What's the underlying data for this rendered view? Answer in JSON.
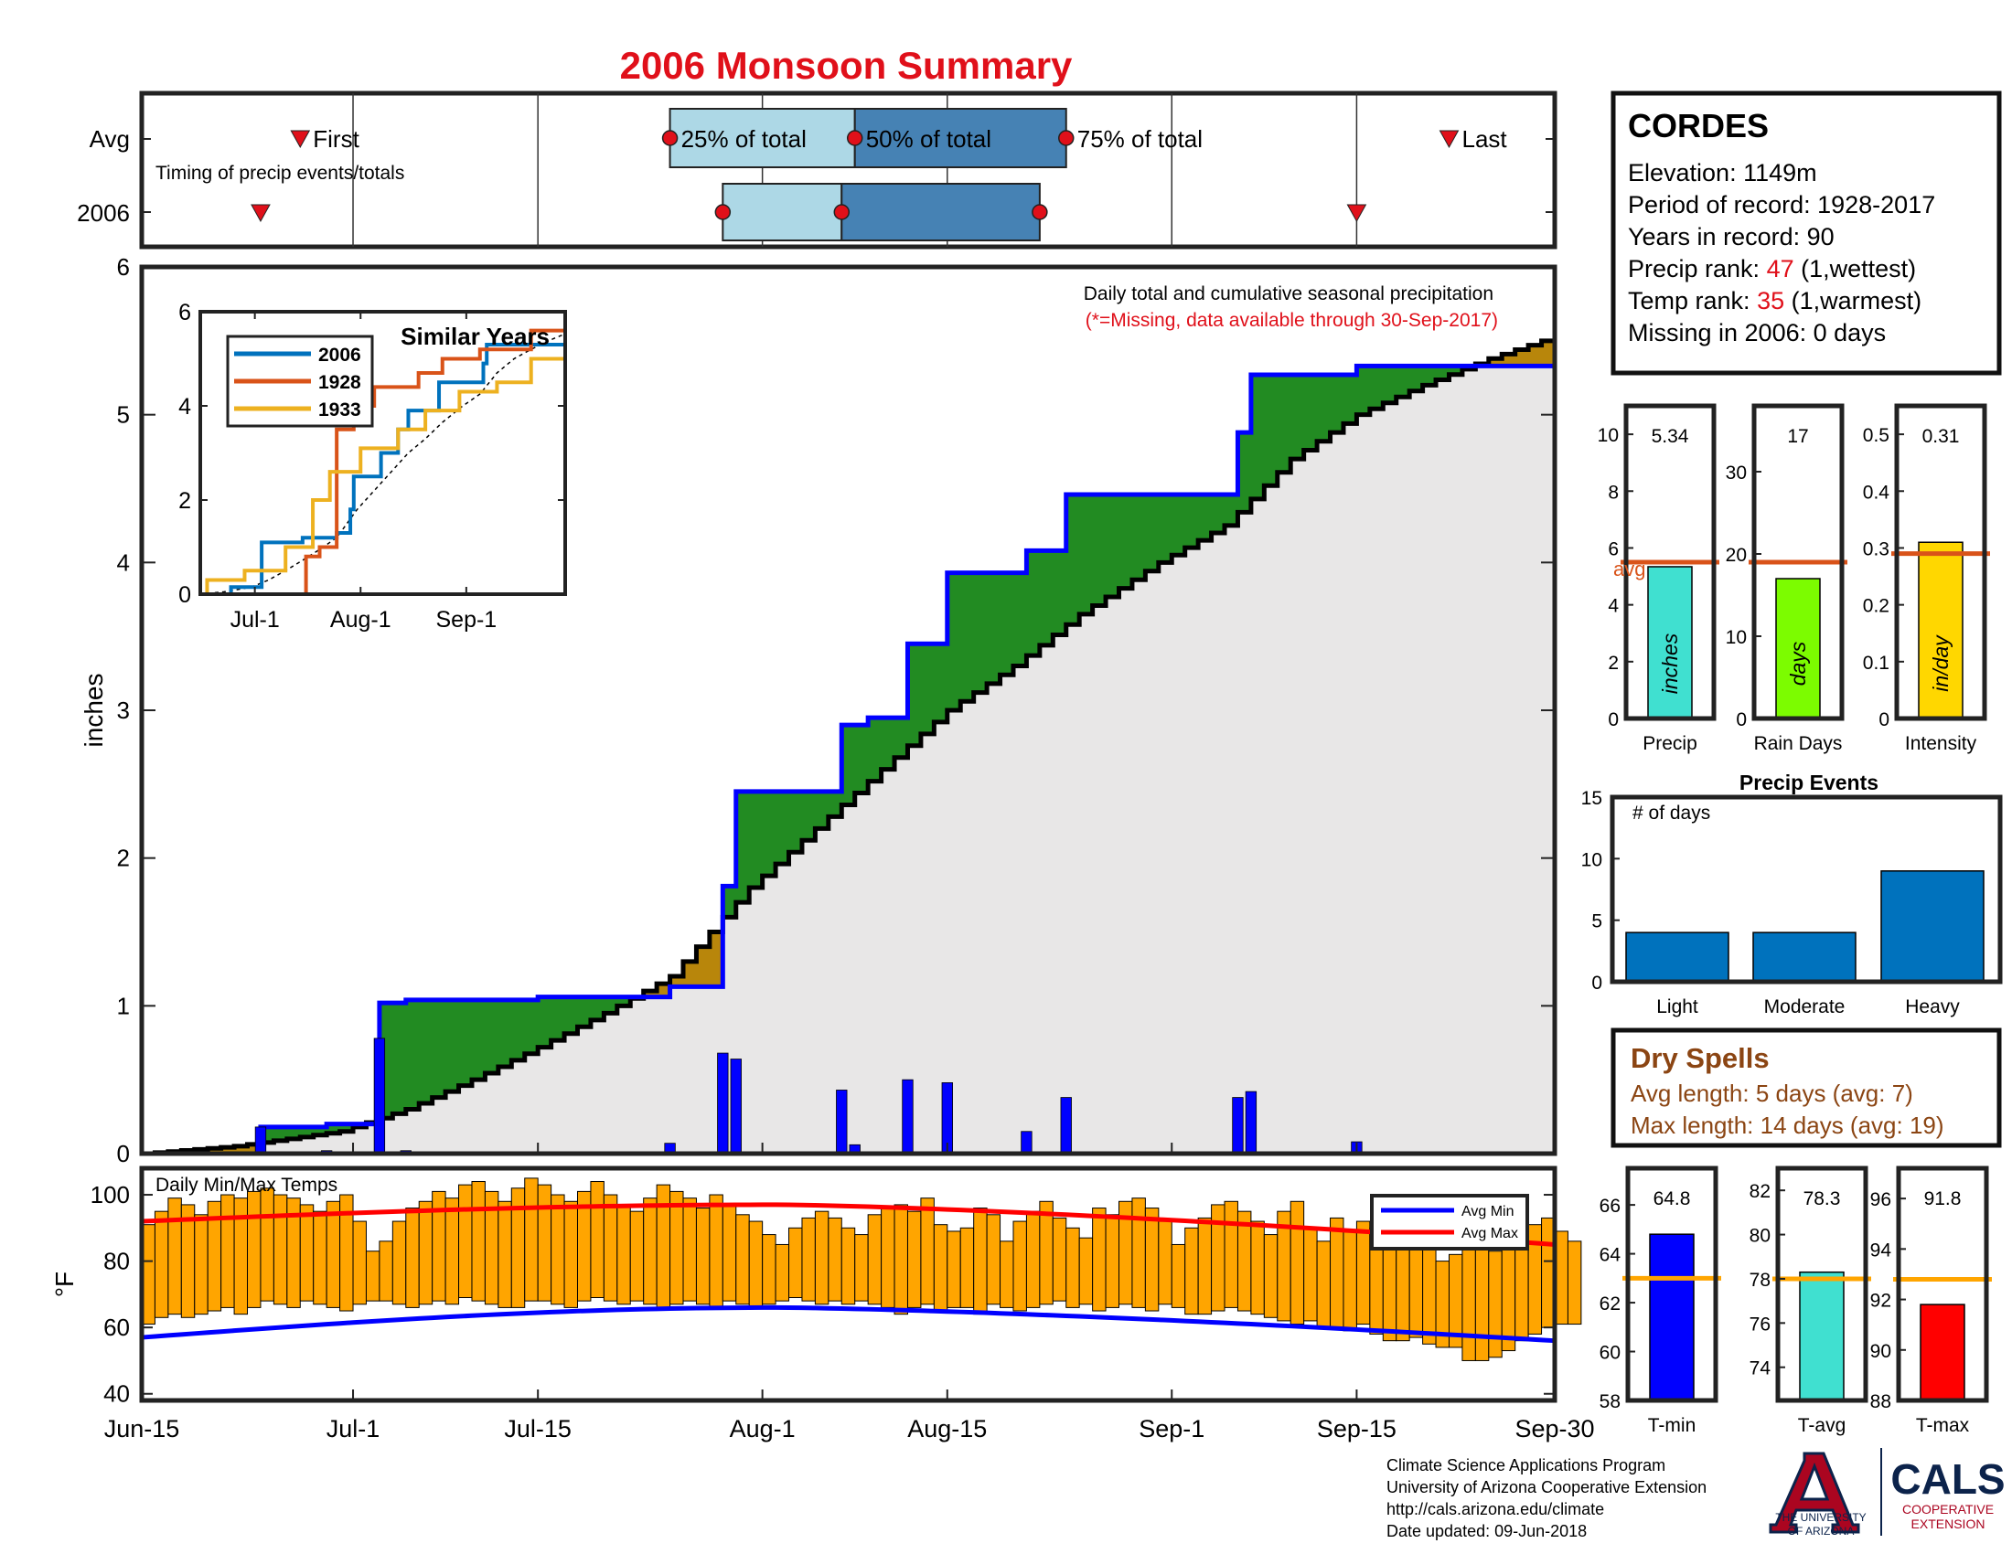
{
  "title": "2006 Monsoon Summary",
  "timing": {
    "avg_label": "Avg",
    "year_label": "2006",
    "caption": "Timing of precip events/totals",
    "first_label": "First",
    "last_label": "Last",
    "pct25_label": "25% of total",
    "pct50_label": "50% of total",
    "pct75_label": "75% of total",
    "avg": {
      "first": "2006-06-27",
      "p25": "2006-07-25",
      "p50": "2006-08-08",
      "p75": "2006-08-24",
      "last": "2006-09-22"
    },
    "year": {
      "first": "2006-06-24",
      "p25": "2006-07-29",
      "p50": "2006-08-07",
      "p75": "2006-08-22",
      "last": "2006-09-15"
    }
  },
  "station": {
    "name": "CORDES",
    "elevation_line": "Elevation: 1149m",
    "period_line": "Period of record: 1928-2017",
    "years_line": "Years in record: 90",
    "precip_rank_prefix": "Precip rank: ",
    "precip_rank": "47",
    "precip_rank_suffix": " (1,wettest)",
    "temp_rank_prefix": "Temp rank: ",
    "temp_rank": "35",
    "temp_rank_suffix": " (1,warmest)",
    "missing_line": "Missing in 2006: 0 days"
  },
  "main": {
    "ylabel": "inches",
    "note": "Daily total and cumulative seasonal precipitation",
    "missing_note": "(*=Missing, data available through 30-Sep-2017)",
    "x_ticks": [
      "Jun-15",
      "Jul-1",
      "Jul-15",
      "Aug-1",
      "Aug-15",
      "Sep-1",
      "Sep-15",
      "Sep-30"
    ],
    "y_ticks": [
      "0",
      "1",
      "2",
      "3",
      "4",
      "5",
      "6"
    ]
  },
  "inset": {
    "title": "Similar Years",
    "legend": [
      "2006",
      "1928",
      "1933"
    ],
    "x_ticks": [
      "Jul-1",
      "Aug-1",
      "Sep-1"
    ],
    "y_ticks": [
      "0",
      "2",
      "4",
      "6"
    ]
  },
  "summary_bars": {
    "avg_label": "avg",
    "precip": {
      "value_label": "5.34",
      "unit": "inches",
      "xlabel": "Precip",
      "y_ticks": [
        "0",
        "2",
        "4",
        "6",
        "8",
        "10"
      ]
    },
    "rain_days": {
      "value_label": "17",
      "unit": "days",
      "xlabel": "Rain Days",
      "y_ticks": [
        "0",
        "10",
        "20",
        "30"
      ]
    },
    "intensity": {
      "value_label": "0.31",
      "unit": "in/day",
      "xlabel": "Intensity",
      "y_ticks": [
        "0",
        "0.1",
        "0.2",
        "0.3",
        "0.4",
        "0.5"
      ]
    }
  },
  "events": {
    "title": "Precip Events",
    "ylabel": "# of days",
    "categories": [
      "Light",
      "Moderate",
      "Heavy"
    ],
    "y_ticks": [
      "0",
      "5",
      "10",
      "15"
    ]
  },
  "dry_spells": {
    "title": "Dry Spells",
    "avg_line": "Avg length: 5 days (avg: 7)",
    "max_line": "Max length: 14 days (avg: 19)"
  },
  "temps": {
    "caption": "Daily Min/Max Temps",
    "ylabel": "°F",
    "y_ticks": [
      "40",
      "60",
      "80",
      "100"
    ],
    "legend": [
      "Avg Min",
      "Avg Max"
    ]
  },
  "temp_bars": {
    "tmin": {
      "value_label": "64.8",
      "xlabel": "T-min",
      "y_ticks": [
        "58",
        "60",
        "62",
        "64",
        "66"
      ]
    },
    "tavg": {
      "value_label": "78.3",
      "xlabel": "T-avg",
      "y_ticks": [
        "74",
        "76",
        "78",
        "80",
        "82"
      ]
    },
    "tmax": {
      "value_label": "91.8",
      "xlabel": "T-max",
      "y_ticks": [
        "88",
        "90",
        "92",
        "94",
        "96"
      ]
    }
  },
  "footer": {
    "lines": [
      "Climate Science Applications Program",
      "University of Arizona Cooperative Extension",
      "http://cals.arizona.edu/climate",
      " Date updated: 09-Jun-2018"
    ],
    "ua_line1": "THE UNIVERSITY",
    "ua_line2": "OF ARIZONA",
    "cals": "CALS",
    "cals_sub1": "COOPERATIVE",
    "cals_sub2": "EXTENSION"
  },
  "colors": {
    "title": "#e0101a",
    "q1": "#add8e6",
    "q2": "#4682b4",
    "wet": "#228b22",
    "dry": "#b8860b",
    "cum": "#0000ff",
    "tempbar": "#ffa500",
    "avgmin": "#0000ff",
    "avgmax": "#ff0000",
    "precip": "#40e0d0",
    "raindays": "#7cfc00",
    "intensity": "#ffd700",
    "tmin": "#0000ff",
    "tavg": "#40e0d0",
    "tmax": "#ff0000",
    "events": "#0072bd",
    "dryspell": "#8b4513",
    "s2006": "#0072bd",
    "s1928": "#d95319",
    "s1933": "#edb120"
  },
  "chart_data": [
    {
      "type": "bar",
      "name": "daily precipitation",
      "x_start": "2006-06-15",
      "x_end": "2006-09-30",
      "ylim": [
        0,
        6
      ],
      "daily_precip": [
        {
          "date": "2006-06-24",
          "in": 0.18
        },
        {
          "date": "2006-06-29",
          "in": 0.02
        },
        {
          "date": "2006-07-03",
          "in": 0.78
        },
        {
          "date": "2006-07-05",
          "in": 0.02
        },
        {
          "date": "2006-07-25",
          "in": 0.07
        },
        {
          "date": "2006-07-29",
          "in": 0.68
        },
        {
          "date": "2006-07-30",
          "in": 0.64
        },
        {
          "date": "2006-08-07",
          "in": 0.43
        },
        {
          "date": "2006-08-08",
          "in": 0.06
        },
        {
          "date": "2006-08-12",
          "in": 0.5
        },
        {
          "date": "2006-08-15",
          "in": 0.48
        },
        {
          "date": "2006-08-21",
          "in": 0.15
        },
        {
          "date": "2006-08-24",
          "in": 0.38
        },
        {
          "date": "2006-09-06",
          "in": 0.38
        },
        {
          "date": "2006-09-07",
          "in": 0.42
        },
        {
          "date": "2006-09-15",
          "in": 0.08
        }
      ],
      "total_in": 5.34
    },
    {
      "type": "line",
      "name": "cumulative precipitation",
      "x_start": "2006-06-15",
      "x_end": "2006-09-30",
      "ylim": [
        0,
        6
      ],
      "series": [
        {
          "name": "2006 cumulative",
          "points": [
            [
              "2006-06-15",
              0
            ],
            [
              "2006-06-24",
              0.18
            ],
            [
              "2006-06-29",
              0.2
            ],
            [
              "2006-07-03",
              1.02
            ],
            [
              "2006-07-05",
              1.04
            ],
            [
              "2006-07-15",
              1.06
            ],
            [
              "2006-07-25",
              1.13
            ],
            [
              "2006-07-29",
              1.81
            ],
            [
              "2006-07-30",
              2.45
            ],
            [
              "2006-08-07",
              2.9
            ],
            [
              "2006-08-09",
              2.95
            ],
            [
              "2006-08-12",
              3.45
            ],
            [
              "2006-08-15",
              3.93
            ],
            [
              "2006-08-21",
              4.08
            ],
            [
              "2006-08-24",
              4.46
            ],
            [
              "2006-09-06",
              4.88
            ],
            [
              "2006-09-07",
              5.27
            ],
            [
              "2006-09-15",
              5.33
            ],
            [
              "2006-09-30",
              5.34
            ]
          ]
        },
        {
          "name": "average cumulative",
          "points": [
            [
              "2006-06-15",
              0
            ],
            [
              "2006-06-22",
              0.05
            ],
            [
              "2006-06-30",
              0.15
            ],
            [
              "2006-07-05",
              0.3
            ],
            [
              "2006-07-10",
              0.5
            ],
            [
              "2006-07-15",
              0.72
            ],
            [
              "2006-07-20",
              0.95
            ],
            [
              "2006-07-25",
              1.2
            ],
            [
              "2006-07-28",
              1.5
            ],
            [
              "2006-07-31",
              1.8
            ],
            [
              "2006-08-05",
              2.2
            ],
            [
              "2006-08-10",
              2.6
            ],
            [
              "2006-08-15",
              3.0
            ],
            [
              "2006-08-20",
              3.3
            ],
            [
              "2006-08-25",
              3.65
            ],
            [
              "2006-08-31",
              4.0
            ],
            [
              "2006-09-05",
              4.25
            ],
            [
              "2006-09-10",
              4.7
            ],
            [
              "2006-09-15",
              5.0
            ],
            [
              "2006-09-20",
              5.2
            ],
            [
              "2006-09-25",
              5.38
            ],
            [
              "2006-09-30",
              5.53
            ]
          ]
        }
      ]
    },
    {
      "type": "line",
      "name": "Similar Years",
      "x_start": "2006-06-15",
      "x_end": "2006-09-30",
      "ylim": [
        0,
        6
      ],
      "series": [
        {
          "name": "2006",
          "points": [
            [
              "2006-06-15",
              0
            ],
            [
              "2006-06-24",
              0.15
            ],
            [
              "2006-07-03",
              1.1
            ],
            [
              "2006-07-15",
              1.2
            ],
            [
              "2006-07-25",
              1.3
            ],
            [
              "2006-07-29",
              1.8
            ],
            [
              "2006-07-30",
              2.5
            ],
            [
              "2006-08-07",
              3.0
            ],
            [
              "2006-08-12",
              3.5
            ],
            [
              "2006-08-15",
              3.9
            ],
            [
              "2006-08-24",
              4.5
            ],
            [
              "2006-09-06",
              4.9
            ],
            [
              "2006-09-07",
              5.3
            ],
            [
              "2006-09-30",
              5.34
            ]
          ]
        },
        {
          "name": "1928",
          "points": [
            [
              "2006-06-15",
              0
            ],
            [
              "2006-07-10",
              0
            ],
            [
              "2006-07-16",
              0.8
            ],
            [
              "2006-07-20",
              1.0
            ],
            [
              "2006-07-25",
              3.5
            ],
            [
              "2006-07-30",
              4.0
            ],
            [
              "2006-08-05",
              4.4
            ],
            [
              "2006-08-12",
              4.4
            ],
            [
              "2006-08-18",
              4.7
            ],
            [
              "2006-08-25",
              5.0
            ],
            [
              "2006-09-05",
              5.2
            ],
            [
              "2006-09-15",
              5.2
            ],
            [
              "2006-09-20",
              5.6
            ],
            [
              "2006-09-30",
              5.6
            ]
          ]
        },
        {
          "name": "1933",
          "points": [
            [
              "2006-06-15",
              0
            ],
            [
              "2006-06-17",
              0.3
            ],
            [
              "2006-06-28",
              0.5
            ],
            [
              "2006-07-10",
              1.0
            ],
            [
              "2006-07-18",
              2.0
            ],
            [
              "2006-07-23",
              2.6
            ],
            [
              "2006-08-01",
              3.1
            ],
            [
              "2006-08-12",
              3.5
            ],
            [
              "2006-08-20",
              3.9
            ],
            [
              "2006-08-30",
              4.3
            ],
            [
              "2006-09-10",
              4.5
            ],
            [
              "2006-09-20",
              5.0
            ],
            [
              "2006-09-30",
              5.1
            ]
          ]
        }
      ]
    },
    {
      "type": "bar",
      "name": "seasonal totals",
      "categories": [
        "Precip",
        "Rain Days",
        "Intensity"
      ],
      "values": [
        5.34,
        17,
        0.31
      ],
      "averages": [
        5.5,
        19,
        0.29
      ],
      "ylims": [
        [
          0,
          11
        ],
        [
          0,
          38
        ],
        [
          0,
          0.55
        ]
      ]
    },
    {
      "type": "bar",
      "name": "Precip Events",
      "categories": [
        "Light",
        "Moderate",
        "Heavy"
      ],
      "values": [
        4,
        4,
        9
      ],
      "ylim": [
        0,
        15
      ]
    },
    {
      "type": "bar",
      "name": "Daily Min/Max Temps",
      "x_start": "2006-06-15",
      "x_end": "2006-09-30",
      "ylim": [
        38,
        108
      ],
      "daily_min": [
        61,
        63,
        64,
        63,
        64,
        65,
        66,
        64,
        66,
        68,
        67,
        66,
        68,
        67,
        66,
        65,
        67,
        68,
        68,
        67,
        66,
        67,
        68,
        67,
        69,
        68,
        67,
        66,
        66,
        68,
        68,
        67,
        66,
        68,
        69,
        68,
        67,
        68,
        67,
        66,
        67,
        68,
        67,
        66,
        68,
        67,
        66,
        67,
        68,
        69,
        68,
        67,
        68,
        67,
        68,
        67,
        66,
        64,
        66,
        67,
        65,
        66,
        66,
        64,
        67,
        66,
        65,
        66,
        67,
        68,
        66,
        67,
        65,
        66,
        67,
        66,
        65,
        67,
        66,
        64,
        64,
        65,
        66,
        65,
        64,
        63,
        62,
        61,
        62,
        60,
        60,
        59,
        61,
        58,
        56,
        56,
        57,
        55,
        54,
        54,
        50,
        50,
        51,
        53,
        56,
        58,
        60,
        61,
        61
      ],
      "daily_max": [
        91,
        95,
        99,
        97,
        94,
        98,
        100,
        99,
        101,
        102,
        100,
        99,
        97,
        95,
        98,
        100,
        92,
        83,
        86,
        92,
        96,
        98,
        101,
        99,
        103,
        104,
        101,
        98,
        102,
        105,
        103,
        100,
        98,
        101,
        104,
        100,
        97,
        95,
        99,
        103,
        101,
        99,
        96,
        100,
        97,
        94,
        92,
        88,
        85,
        90,
        93,
        95,
        93,
        90,
        88,
        94,
        96,
        97,
        95,
        99,
        91,
        89,
        90,
        96,
        94,
        86,
        92,
        95,
        98,
        93,
        90,
        87,
        96,
        94,
        98,
        99,
        96,
        92,
        85,
        90,
        93,
        97,
        98,
        95,
        92,
        88,
        95,
        98,
        90,
        86,
        93,
        89,
        92,
        90,
        84,
        87,
        89,
        85,
        80,
        82,
        85,
        90,
        83,
        86,
        88,
        91,
        93,
        89,
        86
      ],
      "avg_min": {
        "start": 57,
        "peak": 66,
        "end": 56
      },
      "avg_max": {
        "start": 92,
        "peak": 97,
        "end": 85
      }
    },
    {
      "type": "bar",
      "name": "seasonal temperatures",
      "categories": [
        "T-min",
        "T-avg",
        "T-max"
      ],
      "values": [
        64.8,
        78.3,
        91.8
      ],
      "averages": [
        63.0,
        78.0,
        92.8
      ],
      "ylims": [
        [
          58,
          67.5
        ],
        [
          72.5,
          83
        ],
        [
          88,
          97.2
        ]
      ]
    }
  ]
}
